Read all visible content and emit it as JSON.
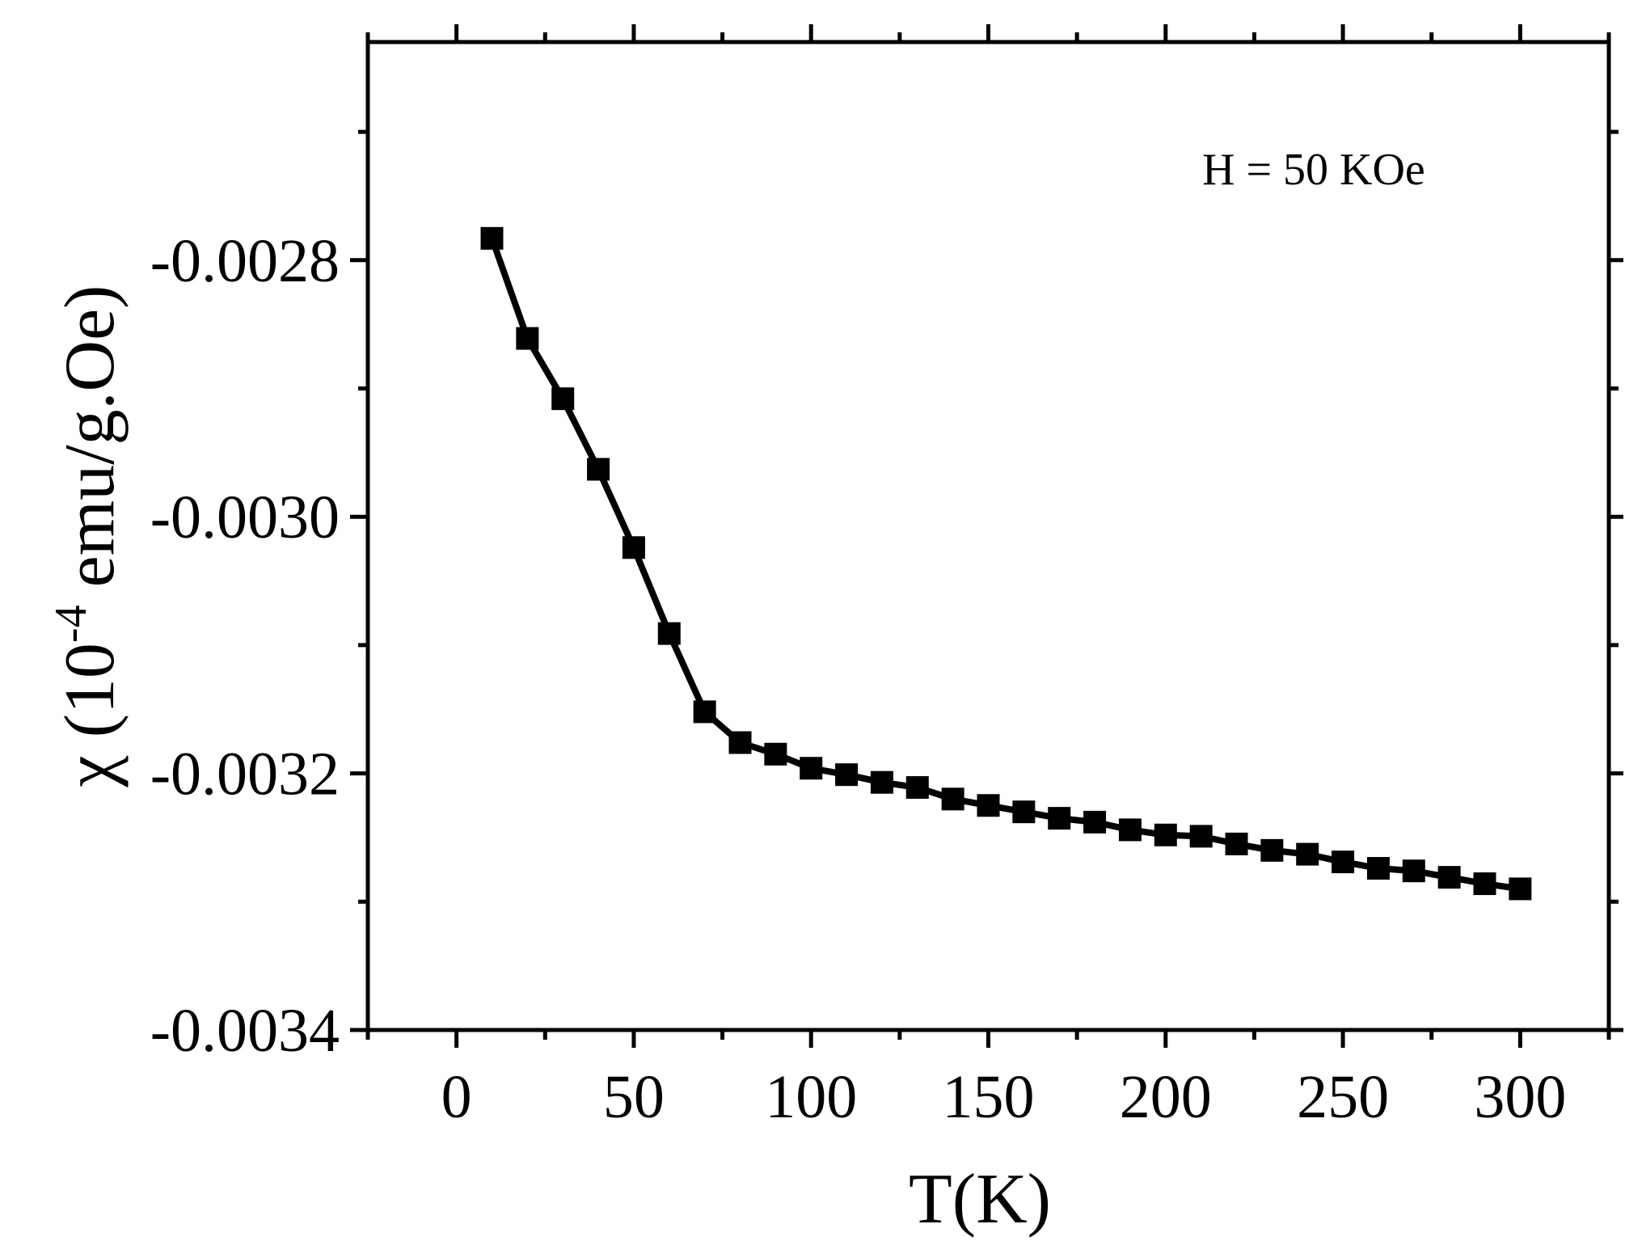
{
  "chart_data": {
    "type": "line",
    "title": "",
    "xlabel": "T(K)",
    "ylabel_main": "χ (10",
    "ylabel_sup": "-4",
    "ylabel_tail": " emu/g.Oe)",
    "annotation": "H = 50 KOe",
    "xlim": [
      -25,
      325
    ],
    "ylim": [
      -0.0034,
      -0.00263
    ],
    "x_ticks": [
      0,
      50,
      100,
      150,
      200,
      250,
      300
    ],
    "x_tick_labels": [
      "0",
      "50",
      "100",
      "150",
      "200",
      "250",
      "300"
    ],
    "y_ticks": [
      -0.0034,
      -0.0032,
      -0.003,
      -0.0028
    ],
    "y_tick_labels": [
      "-0.0034",
      "-0.0032",
      "-0.0030",
      "-0.0028"
    ],
    "grid": false,
    "series": [
      {
        "marker": "square",
        "color": "#000000",
        "x": [
          10,
          20,
          30,
          40,
          50,
          60,
          70,
          80,
          90,
          100,
          110,
          120,
          130,
          140,
          150,
          160,
          170,
          180,
          190,
          200,
          210,
          220,
          230,
          240,
          250,
          260,
          270,
          280,
          290,
          300
        ],
        "y": [
          -0.002783,
          -0.002861,
          -0.002908,
          -0.002963,
          -0.003024,
          -0.003091,
          -0.003152,
          -0.003176,
          -0.003185,
          -0.003196,
          -0.003201,
          -0.003207,
          -0.003211,
          -0.00322,
          -0.003225,
          -0.00323,
          -0.003235,
          -0.003238,
          -0.003244,
          -0.003248,
          -0.003249,
          -0.003255,
          -0.00326,
          -0.003263,
          -0.003269,
          -0.003274,
          -0.003276,
          -0.003281,
          -0.003286,
          -0.00329
        ]
      }
    ]
  }
}
